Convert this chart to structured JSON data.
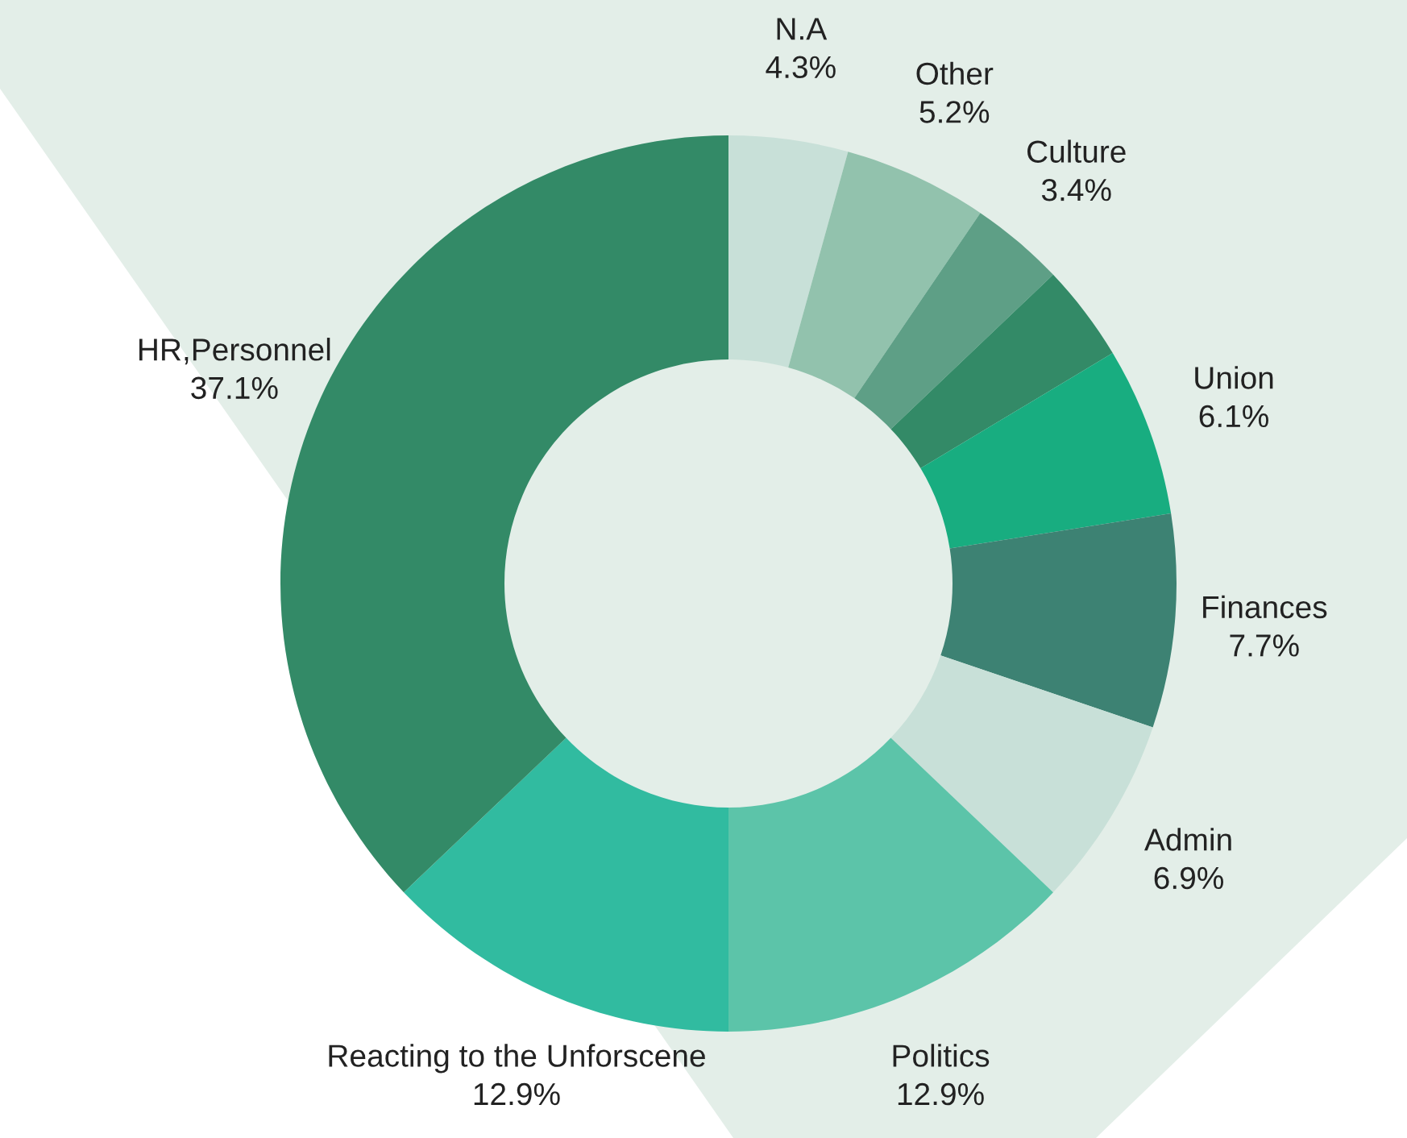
{
  "chart_data": {
    "type": "donut",
    "categories": [
      "N.A",
      "Other",
      "Culture",
      null,
      "Union",
      "Finances",
      "Admin",
      "Politics",
      "Reacting to the Unforscene",
      "HR,Personnel"
    ],
    "values": [
      4.3,
      5.2,
      3.4,
      3.5,
      6.1,
      7.7,
      6.9,
      12.9,
      12.9,
      37.1
    ],
    "value_labels": [
      "4.3%",
      "5.2%",
      "3.4%",
      null,
      "6.1%",
      "7.7%",
      "6.9%",
      "12.9%",
      "12.9%",
      "37.1%"
    ],
    "colors": [
      "#c8e0d8",
      "#92c2ad",
      "#5e9f86",
      "#338a67",
      "#18ad80",
      "#3d8273",
      "#c8e0d8",
      "#5cc4a9",
      "#31bba0",
      "#338a67"
    ],
    "legend": false
  }
}
